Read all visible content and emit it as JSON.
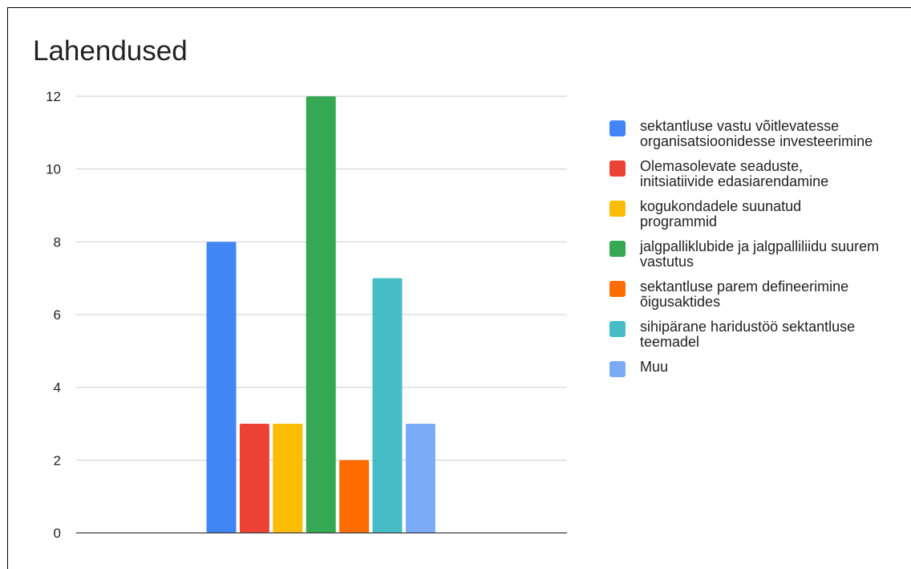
{
  "chart_data": {
    "type": "bar",
    "title": "Lahendused",
    "xlabel": "",
    "ylabel": "",
    "ylim": [
      0,
      12
    ],
    "yticks": [
      0,
      2,
      4,
      6,
      8,
      10,
      12
    ],
    "grid": true,
    "legend_position": "right",
    "categories": [
      ""
    ],
    "series": [
      {
        "name": "sektantluse vastu võitlevatesse organisatsioonidesse investeerimine",
        "values": [
          8
        ],
        "color": "#4285f4"
      },
      {
        "name": "Olemasolevate seaduste, initsiatiivide edasiarendamine",
        "values": [
          3
        ],
        "color": "#ea4335"
      },
      {
        "name": "kogukondadele suunatud programmid",
        "values": [
          3
        ],
        "color": "#fbbc04"
      },
      {
        "name": "jalgpalliklubide ja jalgpalliliidu suurem vastutus",
        "values": [
          12
        ],
        "color": "#34a853"
      },
      {
        "name": "sektantluse parem defineerimine õigusaktides",
        "values": [
          2
        ],
        "color": "#ff6d01"
      },
      {
        "name": "sihipärane haridustöö sektantluse teemadel",
        "values": [
          7
        ],
        "color": "#46bdc6"
      },
      {
        "name": "Muu",
        "values": [
          3
        ],
        "color": "#7baaf7"
      }
    ]
  }
}
